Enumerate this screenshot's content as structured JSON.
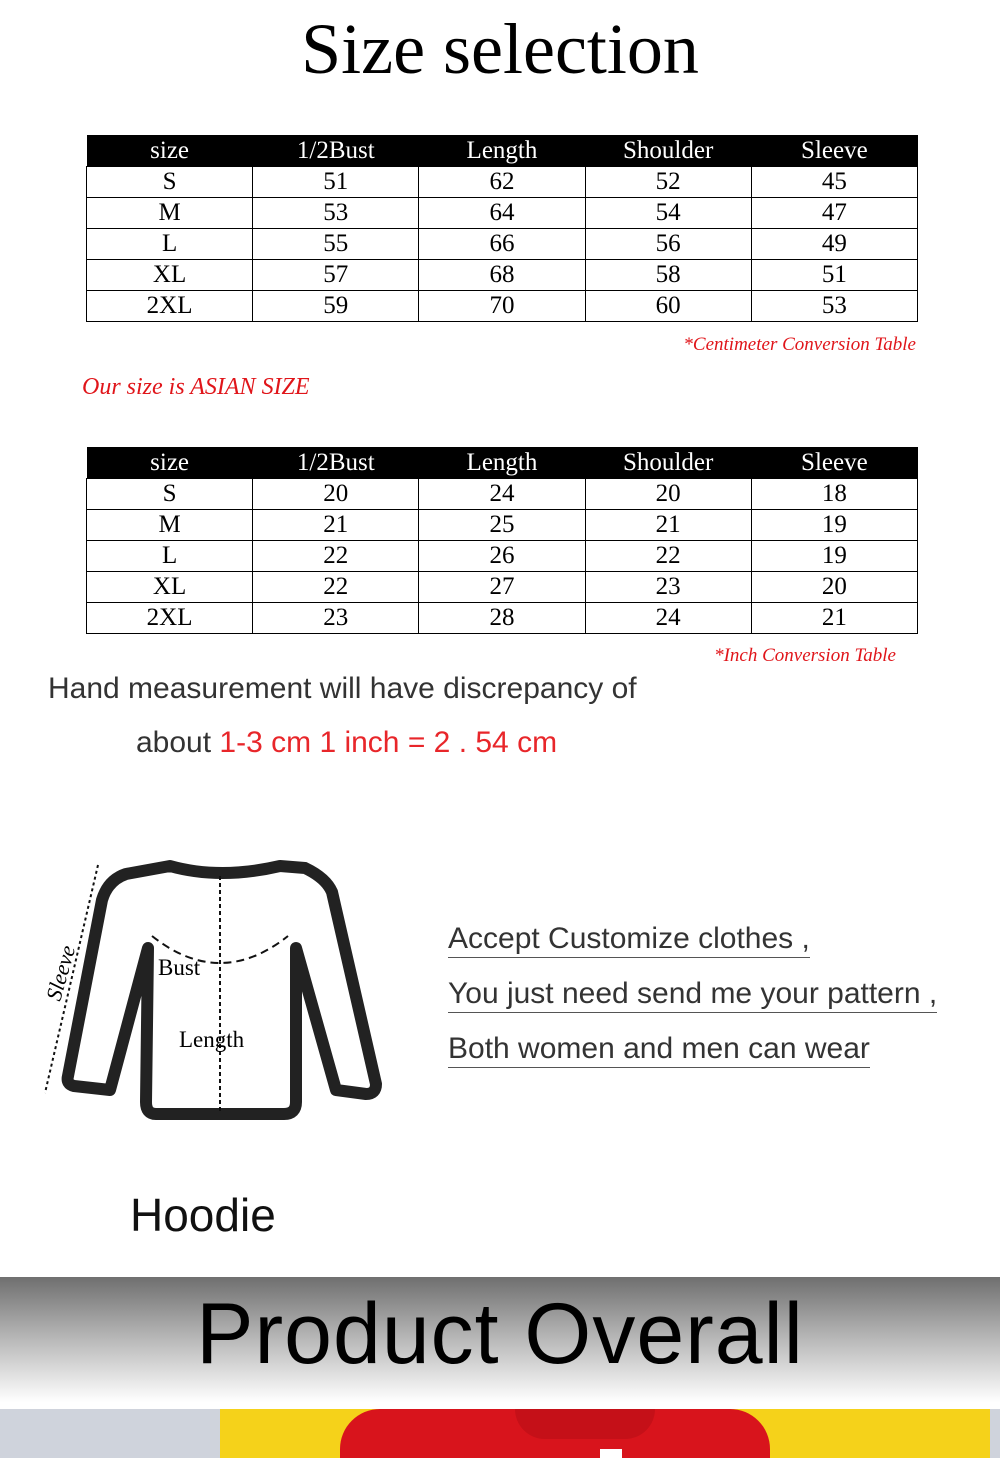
{
  "title": "Size selection",
  "columns": [
    "size",
    "1/2Bust",
    "Length",
    "Shoulder",
    "Sleeve"
  ],
  "cm_table": {
    "rows": [
      [
        "S",
        "51",
        "62",
        "52",
        "45"
      ],
      [
        "M",
        "53",
        "64",
        "54",
        "47"
      ],
      [
        "L",
        "55",
        "66",
        "56",
        "49"
      ],
      [
        "XL",
        "57",
        "68",
        "58",
        "51"
      ],
      [
        "2XL",
        "59",
        "70",
        "60",
        "53"
      ]
    ],
    "note": "*Centimeter Conversion Table"
  },
  "asian_note": "Our size is ASIAN SIZE",
  "inch_table": {
    "rows": [
      [
        "S",
        "20",
        "24",
        "20",
        "18"
      ],
      [
        "M",
        "21",
        "25",
        "21",
        "19"
      ],
      [
        "L",
        "22",
        "26",
        "22",
        "19"
      ],
      [
        "XL",
        "22",
        "27",
        "23",
        "20"
      ],
      [
        "2XL",
        "23",
        "28",
        "24",
        "21"
      ]
    ],
    "note": "*Inch Conversion Table"
  },
  "measurement": {
    "line1": "Hand measurement will have discrepancy of",
    "line2_prefix": "about ",
    "line2_red": "1-3 cm 1 inch = 2 . 54 cm"
  },
  "diagram": {
    "sleeve": "Sleeve",
    "bust": "Bust",
    "length": "Length",
    "caption": "Hoodie"
  },
  "custom": [
    "Accept Customize clothes ,",
    "You just need send me your pattern ,",
    "Both women and men can wear"
  ],
  "banner": "Product Overall",
  "colors": {
    "accent_red": "#e0151a",
    "header_bg": "#000000",
    "photo_yellow": "#f5d21a",
    "hoodie_red": "#d8141c"
  }
}
